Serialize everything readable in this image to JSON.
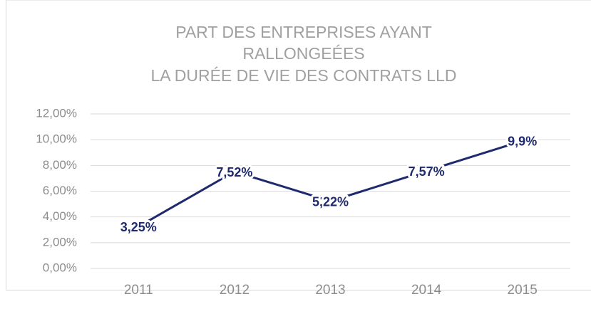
{
  "chart_data": {
    "type": "line",
    "title": [
      "PART DES ENTREPRISES AYANT",
      "RALLONGEÉES",
      "LA DURÉE DE VIE DES CONTRATS LLD"
    ],
    "categories": [
      "2011",
      "2012",
      "2013",
      "2014",
      "2015"
    ],
    "values": [
      3.25,
      7.52,
      5.22,
      7.57,
      9.9
    ],
    "value_labels": [
      "3,25%",
      "7,52%",
      "5,22%",
      "7,57%",
      "9,9%"
    ],
    "color": "#1f2a6e",
    "ylim": [
      0,
      12
    ],
    "yticks": [
      {
        "value": 0,
        "label": "0,00%"
      },
      {
        "value": 2,
        "label": "2,00%"
      },
      {
        "value": 4,
        "label": "4,00%"
      },
      {
        "value": 6,
        "label": "6,00%"
      },
      {
        "value": 8,
        "label": "8,00%"
      },
      {
        "value": 10,
        "label": "10,00%"
      },
      {
        "value": 12,
        "label": "12,00%"
      }
    ],
    "grid": true
  }
}
